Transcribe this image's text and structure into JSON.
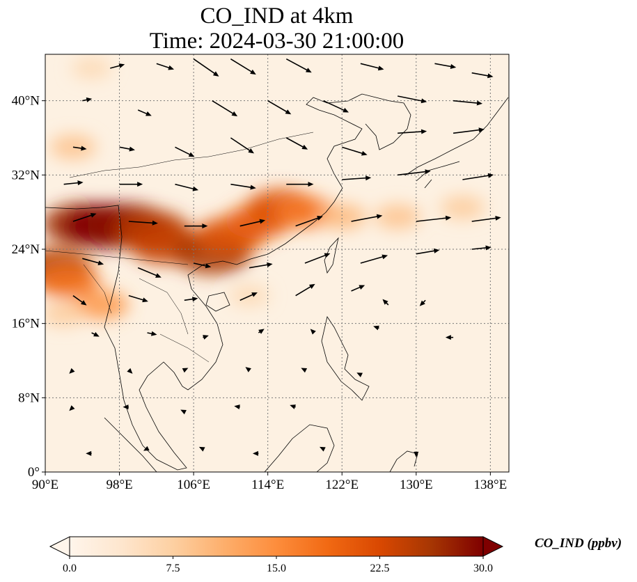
{
  "title": {
    "line1": "CO_IND at 4km",
    "line2": "Time: 2024-03-30 21:00:00"
  },
  "map": {
    "variable": "CO_IND",
    "lon_range": [
      90,
      140
    ],
    "lat_range": [
      0,
      45
    ],
    "lon_ticks": [
      {
        "value": 90,
        "label": "90°E"
      },
      {
        "value": 98,
        "label": "98°E"
      },
      {
        "value": 106,
        "label": "106°E"
      },
      {
        "value": 114,
        "label": "114°E"
      },
      {
        "value": 122,
        "label": "122°E"
      },
      {
        "value": 130,
        "label": "130°E"
      },
      {
        "value": 138,
        "label": "138°E"
      }
    ],
    "lat_ticks": [
      {
        "value": 0,
        "label": "0°"
      },
      {
        "value": 8,
        "label": "8°N"
      },
      {
        "value": 16,
        "label": "16°N"
      },
      {
        "value": 24,
        "label": "24°N"
      },
      {
        "value": 32,
        "label": "32°N"
      },
      {
        "value": 40,
        "label": "40°N"
      }
    ],
    "gridlines": true,
    "plumes": [
      {
        "lon": 94,
        "lat": 26.7,
        "value": 27
      },
      {
        "lon": 96.5,
        "lat": 26.5,
        "value": 30
      },
      {
        "lon": 99,
        "lat": 26.5,
        "value": 29
      },
      {
        "lon": 101.5,
        "lat": 26,
        "value": 25
      },
      {
        "lon": 103,
        "lat": 24.5,
        "value": 24
      },
      {
        "lon": 91,
        "lat": 22,
        "value": 25
      },
      {
        "lon": 92.5,
        "lat": 20.5,
        "value": 18
      },
      {
        "lon": 96,
        "lat": 18,
        "value": 14
      },
      {
        "lon": 108,
        "lat": 23.5,
        "value": 26
      },
      {
        "lon": 110,
        "lat": 25.5,
        "value": 22
      },
      {
        "lon": 113,
        "lat": 27,
        "value": 20
      },
      {
        "lon": 115.5,
        "lat": 28.5,
        "value": 22
      },
      {
        "lon": 118,
        "lat": 28,
        "value": 17
      },
      {
        "lon": 122,
        "lat": 27.5,
        "value": 10
      },
      {
        "lon": 128,
        "lat": 27.5,
        "value": 9
      },
      {
        "lon": 135,
        "lat": 28.5,
        "value": 8
      },
      {
        "lon": 93,
        "lat": 35,
        "value": 9
      },
      {
        "lon": 92,
        "lat": 17,
        "value": 8
      },
      {
        "lon": 112,
        "lat": 19,
        "value": 6
      },
      {
        "lon": 95,
        "lat": 43.5,
        "value": 6
      }
    ],
    "wind_vectors": [
      {
        "lon": 97,
        "lat": 43.5,
        "u": 1.5,
        "v": 0.4
      },
      {
        "lon": 102,
        "lat": 44,
        "u": 1.8,
        "v": -0.6
      },
      {
        "lon": 106,
        "lat": 44.5,
        "u": 2.6,
        "v": -1.8
      },
      {
        "lon": 110,
        "lat": 44.5,
        "u": 2.6,
        "v": -1.6
      },
      {
        "lon": 116,
        "lat": 44.5,
        "u": 2.6,
        "v": -1.4
      },
      {
        "lon": 124,
        "lat": 44,
        "u": 2.4,
        "v": -0.6
      },
      {
        "lon": 132,
        "lat": 44,
        "u": 2.2,
        "v": -0.4
      },
      {
        "lon": 136,
        "lat": 43,
        "u": 2.2,
        "v": -0.4
      },
      {
        "lon": 94,
        "lat": 40,
        "u": 1.0,
        "v": 0.2
      },
      {
        "lon": 100,
        "lat": 39,
        "u": 1.4,
        "v": -0.6
      },
      {
        "lon": 108,
        "lat": 40,
        "u": 2.6,
        "v": -1.6
      },
      {
        "lon": 114,
        "lat": 40,
        "u": 2.4,
        "v": -1.4
      },
      {
        "lon": 120,
        "lat": 40,
        "u": 2.6,
        "v": -1.2
      },
      {
        "lon": 128,
        "lat": 40.5,
        "u": 3.0,
        "v": -0.6
      },
      {
        "lon": 134,
        "lat": 40,
        "u": 3.0,
        "v": -0.3
      },
      {
        "lon": 93,
        "lat": 35,
        "u": 1.4,
        "v": -0.2
      },
      {
        "lon": 98,
        "lat": 35,
        "u": 1.6,
        "v": -0.3
      },
      {
        "lon": 104,
        "lat": 35,
        "u": 2.0,
        "v": -1.0
      },
      {
        "lon": 110,
        "lat": 36,
        "u": 2.4,
        "v": -1.6
      },
      {
        "lon": 116,
        "lat": 36,
        "u": 2.2,
        "v": -1.2
      },
      {
        "lon": 122,
        "lat": 35,
        "u": 2.6,
        "v": -0.8
      },
      {
        "lon": 128,
        "lat": 36.5,
        "u": 3.0,
        "v": 0.2
      },
      {
        "lon": 134,
        "lat": 36.5,
        "u": 3.2,
        "v": 0.4
      },
      {
        "lon": 92,
        "lat": 31,
        "u": 2.0,
        "v": 0.2
      },
      {
        "lon": 98,
        "lat": 31,
        "u": 2.4,
        "v": 0.0
      },
      {
        "lon": 104,
        "lat": 31,
        "u": 2.4,
        "v": -0.6
      },
      {
        "lon": 110,
        "lat": 31,
        "u": 2.6,
        "v": -0.4
      },
      {
        "lon": 116,
        "lat": 31,
        "u": 2.8,
        "v": 0.0
      },
      {
        "lon": 122,
        "lat": 31.5,
        "u": 3.0,
        "v": 0.2
      },
      {
        "lon": 128,
        "lat": 32,
        "u": 3.4,
        "v": 0.4
      },
      {
        "lon": 135,
        "lat": 31.5,
        "u": 3.2,
        "v": 0.5
      },
      {
        "lon": 93,
        "lat": 27,
        "u": 2.4,
        "v": 0.8
      },
      {
        "lon": 99,
        "lat": 27,
        "u": 3.0,
        "v": -0.2
      },
      {
        "lon": 105,
        "lat": 26.5,
        "u": 2.4,
        "v": 0.0
      },
      {
        "lon": 111,
        "lat": 26.5,
        "u": 2.6,
        "v": 0.6
      },
      {
        "lon": 117,
        "lat": 26.5,
        "u": 2.8,
        "v": 1.0
      },
      {
        "lon": 123,
        "lat": 27,
        "u": 3.2,
        "v": 0.6
      },
      {
        "lon": 130,
        "lat": 27,
        "u": 3.6,
        "v": 0.4
      },
      {
        "lon": 136,
        "lat": 27,
        "u": 3.0,
        "v": 0.4
      },
      {
        "lon": 94,
        "lat": 23,
        "u": 2.2,
        "v": -0.6
      },
      {
        "lon": 100,
        "lat": 22,
        "u": 2.4,
        "v": -1.0
      },
      {
        "lon": 106,
        "lat": 22.5,
        "u": 1.8,
        "v": -0.4
      },
      {
        "lon": 112,
        "lat": 22,
        "u": 2.4,
        "v": 0.4
      },
      {
        "lon": 118,
        "lat": 22.5,
        "u": 2.6,
        "v": 1.0
      },
      {
        "lon": 124,
        "lat": 22.5,
        "u": 2.8,
        "v": 0.8
      },
      {
        "lon": 130,
        "lat": 23.5,
        "u": 2.4,
        "v": 0.4
      },
      {
        "lon": 136,
        "lat": 24,
        "u": 2.0,
        "v": 0.2
      },
      {
        "lon": 93,
        "lat": 19,
        "u": 1.4,
        "v": -1.0
      },
      {
        "lon": 99,
        "lat": 19,
        "u": 2.0,
        "v": -0.6
      },
      {
        "lon": 105,
        "lat": 18.5,
        "u": 1.4,
        "v": 0.2
      },
      {
        "lon": 111,
        "lat": 18.5,
        "u": 1.8,
        "v": 0.8
      },
      {
        "lon": 117,
        "lat": 19,
        "u": 2.0,
        "v": 1.2
      },
      {
        "lon": 123,
        "lat": 19.5,
        "u": 1.4,
        "v": 0.6
      },
      {
        "lon": 127,
        "lat": 18,
        "u": -0.6,
        "v": 0.6
      },
      {
        "lon": 131,
        "lat": 18.5,
        "u": -0.6,
        "v": -0.6
      },
      {
        "lon": 95,
        "lat": 15,
        "u": 0.8,
        "v": -0.4
      },
      {
        "lon": 101,
        "lat": 15,
        "u": 1.0,
        "v": -0.2
      },
      {
        "lon": 107,
        "lat": 14.5,
        "u": 0.6,
        "v": 0.2
      },
      {
        "lon": 113,
        "lat": 15,
        "u": 0.6,
        "v": 0.4
      },
      {
        "lon": 119,
        "lat": 15,
        "u": -0.4,
        "v": 0.4
      },
      {
        "lon": 126,
        "lat": 15.5,
        "u": -0.6,
        "v": 0.2
      },
      {
        "lon": 134,
        "lat": 14.5,
        "u": -0.8,
        "v": 0.0
      },
      {
        "lon": 93,
        "lat": 11,
        "u": -0.4,
        "v": -0.4
      },
      {
        "lon": 99,
        "lat": 11,
        "u": 0.4,
        "v": -0.4
      },
      {
        "lon": 105,
        "lat": 11,
        "u": 0.4,
        "v": 0.2
      },
      {
        "lon": 112,
        "lat": 11,
        "u": -0.4,
        "v": 0.3
      },
      {
        "lon": 118,
        "lat": 11,
        "u": -0.4,
        "v": 0.2
      },
      {
        "lon": 124,
        "lat": 10.5,
        "u": -0.4,
        "v": 0.2
      },
      {
        "lon": 93,
        "lat": 7,
        "u": -0.4,
        "v": -0.4
      },
      {
        "lon": 99,
        "lat": 7,
        "u": -0.6,
        "v": 0.0
      },
      {
        "lon": 105,
        "lat": 6.5,
        "u": -0.4,
        "v": 0.2
      },
      {
        "lon": 111,
        "lat": 7,
        "u": -0.6,
        "v": 0.1
      },
      {
        "lon": 117,
        "lat": 7,
        "u": -0.6,
        "v": 0.2
      },
      {
        "lon": 95,
        "lat": 2,
        "u": -0.6,
        "v": 0.0
      },
      {
        "lon": 101,
        "lat": 2.5,
        "u": -0.4,
        "v": -0.2
      },
      {
        "lon": 107,
        "lat": 2.5,
        "u": -0.4,
        "v": 0.2
      },
      {
        "lon": 113,
        "lat": 2,
        "u": -0.6,
        "v": 0.0
      },
      {
        "lon": 120,
        "lat": 2.5,
        "u": -0.4,
        "v": 0.2
      },
      {
        "lon": 130,
        "lat": 2,
        "u": 0.0,
        "v": -0.4
      }
    ]
  },
  "colorbar": {
    "label": "CO_IND (ppbv)",
    "min": 0.0,
    "max": 30.0,
    "ticks": [
      {
        "value": 0.0,
        "label": "0.0"
      },
      {
        "value": 7.5,
        "label": "7.5"
      },
      {
        "value": 15.0,
        "label": "15.0"
      },
      {
        "value": 22.5,
        "label": "22.5"
      },
      {
        "value": 30.0,
        "label": "30.0"
      }
    ],
    "colormap": [
      "#fff5eb",
      "#fee6ce",
      "#fdd0a2",
      "#fdae6b",
      "#fd8d3c",
      "#f16913",
      "#d94801",
      "#a63603",
      "#7f0000"
    ]
  }
}
